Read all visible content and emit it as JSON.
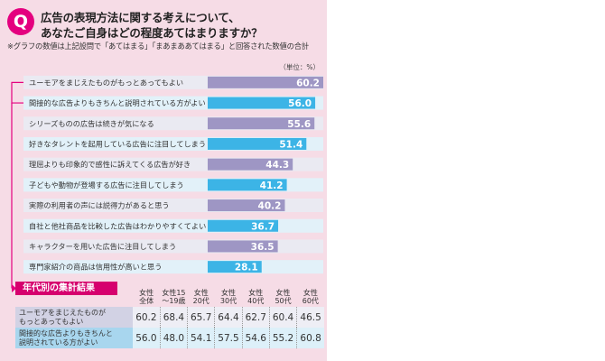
{
  "question": {
    "badge": "Q",
    "title_line1": "広告の表現方法に関する考えについて、",
    "title_line2": "あなたご自身はどの程度あてはまりますか？",
    "note": "※グラフの数値は上記設問で「あてはまる」「まあまああてはまる」と回答された数値の合計"
  },
  "chart_data": {
    "type": "bar",
    "orientation": "horizontal",
    "unit_label": "（単位：%）",
    "xlim": [
      0,
      60.2
    ],
    "categories": [
      "ユーモアをまじえたものがもっとあってもよい",
      "間接的な広告よりもきちんと説明されている方がよい",
      "シリーズものの広告は続きが気になる",
      "好きなタレントを起用している広告に注目してしまう",
      "理屈よりも印象的で感性に訴えてくる広告が好き",
      "子どもや動物が登場する広告に注目してしまう",
      "実際の利用者の声には説得力があると思う",
      "自社と他社商品を比較した広告はわかりやすくてよい",
      "キャラクターを用いた広告に注目してしまう",
      "専門家紹介の商品は信用性が高いと思う"
    ],
    "values": [
      60.2,
      56.0,
      55.6,
      51.4,
      44.3,
      41.2,
      40.2,
      36.7,
      36.5,
      28.1
    ],
    "value_labels": [
      "60.2",
      "56.0",
      "55.6",
      "51.4",
      "44.3",
      "41.2",
      "40.2",
      "36.7",
      "36.5",
      "28.1"
    ],
    "colors": [
      "#9e96c4",
      "#3cb4e6",
      "#9e96c4",
      "#3cb4e6",
      "#9e96c4",
      "#3cb4e6",
      "#9e96c4",
      "#3cb4e6",
      "#9e96c4",
      "#3cb4e6"
    ],
    "row_band_colors": [
      "#eaeaf2",
      "#e2f1f9"
    ]
  },
  "age_table": {
    "section_title": "年代別の集計結果",
    "columns": [
      "女性\n全体",
      "女性15\n〜19歳",
      "女性\n20代",
      "女性\n30代",
      "女性\n40代",
      "女性\n50代",
      "女性\n60代"
    ],
    "rows": [
      {
        "label": "ユーモアをまじえたものが\nもっとあってもよい",
        "values": [
          "60.2",
          "68.4",
          "65.7",
          "64.4",
          "62.7",
          "60.4",
          "46.5"
        ]
      },
      {
        "label": "間接的な広告よりもきちんと\n説明されている方がよい",
        "values": [
          "56.0",
          "48.0",
          "54.1",
          "57.5",
          "54.6",
          "55.2",
          "60.8"
        ]
      }
    ]
  },
  "colors": {
    "accent": "#e4007f",
    "panel": "#f6dce6",
    "purple_bar": "#9e96c4",
    "blue_bar": "#3cb4e6"
  }
}
